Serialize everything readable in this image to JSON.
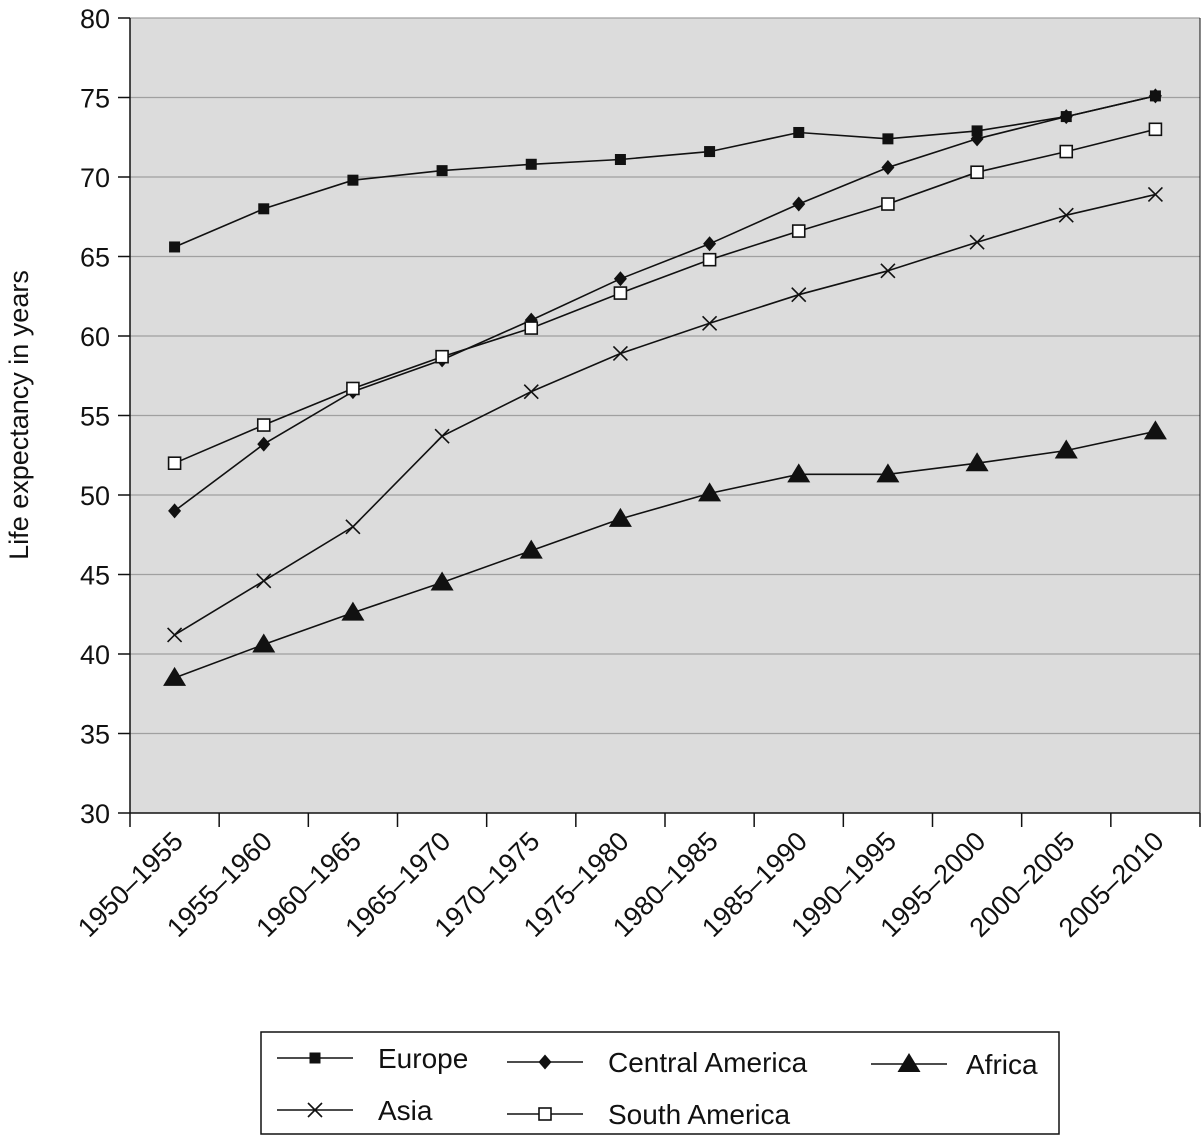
{
  "chart_data": {
    "type": "line",
    "title": "",
    "xlabel": "",
    "ylabel": "Life expectancy in years",
    "ylim": [
      30,
      80
    ],
    "yticks": [
      30,
      35,
      40,
      45,
      50,
      55,
      60,
      65,
      70,
      75,
      80
    ],
    "grid": "horizontal",
    "legend_position": "bottom",
    "colors": {
      "plot_bg": "#dcdcdc",
      "grid": "#a0a0a0",
      "line": "#111111"
    },
    "categories": [
      "1950–1955",
      "1955–1960",
      "1960–1965",
      "1965–1970",
      "1970–1975",
      "1975–1980",
      "1980–1985",
      "1985–1990",
      "1990–1995",
      "1995–2000",
      "2000–2005",
      "2005–2010"
    ],
    "series": [
      {
        "name": "Europe",
        "marker": "filled-square",
        "values": [
          65.6,
          68.0,
          69.8,
          70.4,
          70.8,
          71.1,
          71.6,
          72.8,
          72.4,
          72.9,
          73.8,
          75.1
        ]
      },
      {
        "name": "Central America",
        "marker": "filled-diamond",
        "values": [
          49.0,
          53.2,
          56.5,
          58.5,
          61.0,
          63.6,
          65.8,
          68.3,
          70.6,
          72.4,
          73.8,
          75.1
        ]
      },
      {
        "name": "Africa",
        "marker": "filled-triangle",
        "values": [
          38.5,
          40.6,
          42.6,
          44.5,
          46.5,
          48.5,
          50.1,
          51.3,
          51.3,
          52.0,
          52.8,
          54.0
        ]
      },
      {
        "name": "Asia",
        "marker": "x",
        "values": [
          41.2,
          44.6,
          48.0,
          53.7,
          56.5,
          58.9,
          60.8,
          62.6,
          64.1,
          65.9,
          67.6,
          68.9
        ]
      },
      {
        "name": "South America",
        "marker": "open-square",
        "values": [
          52.0,
          54.4,
          56.7,
          58.7,
          60.5,
          62.7,
          64.8,
          66.6,
          68.3,
          70.3,
          71.6,
          73.0
        ]
      }
    ]
  }
}
